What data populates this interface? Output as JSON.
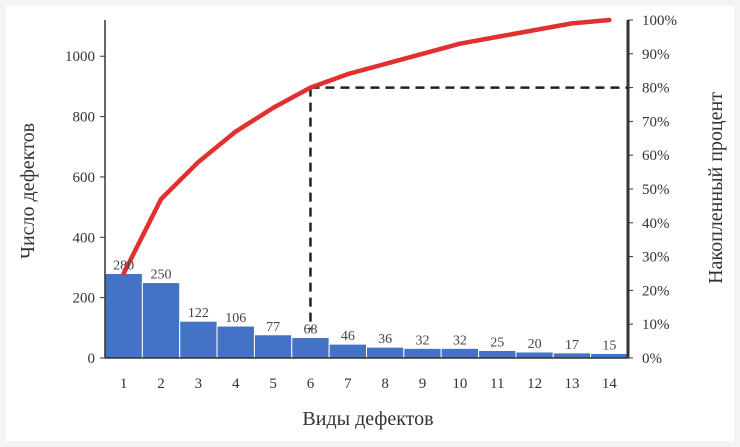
{
  "chart_data": {
    "type": "bar",
    "categories": [
      "1",
      "2",
      "3",
      "4",
      "5",
      "6",
      "7",
      "8",
      "9",
      "10",
      "11",
      "12",
      "13",
      "14"
    ],
    "series": [
      {
        "values": [
          280,
          250,
          122,
          106,
          77,
          68,
          46,
          36,
          32,
          32,
          25,
          20,
          17,
          15
        ],
        "axis": "left",
        "kind": "bar"
      },
      {
        "values": [
          25,
          47,
          58,
          67,
          74,
          80,
          84,
          87,
          90,
          93,
          95,
          97,
          99,
          100
        ],
        "axis": "right",
        "kind": "line"
      }
    ],
    "xlabel": "Виды дефектов",
    "ylabel": "Число дефектов",
    "y2label": "Накопленный процент",
    "ylim": [
      0,
      1120
    ],
    "y2lim": [
      0,
      100
    ],
    "yticks": [
      0,
      200,
      400,
      600,
      800,
      1000
    ],
    "y2ticks": [
      "0%",
      "10%",
      "20%",
      "30%",
      "40%",
      "50%",
      "60%",
      "70%",
      "80%",
      "90%",
      "100%"
    ],
    "reference": {
      "percent": 80,
      "category": "6",
      "style": "dashed"
    },
    "grid": false,
    "colors": {
      "bar": "#4472c4",
      "line": "#e03030",
      "reference": "#222222",
      "axis": "#333333"
    }
  }
}
